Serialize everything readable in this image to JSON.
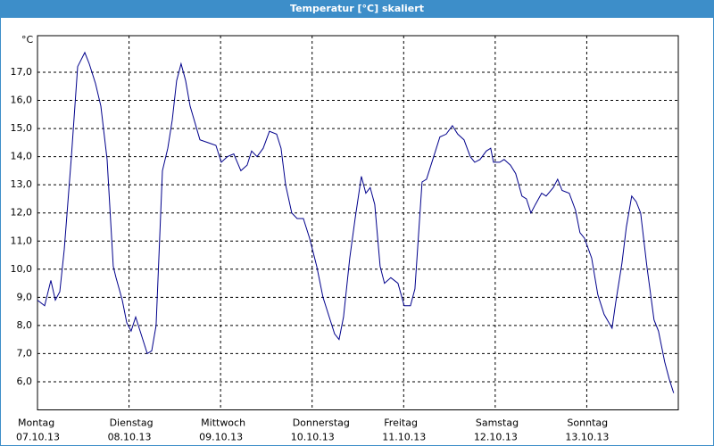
{
  "chart_data": {
    "type": "line",
    "title": "Temperatur [°C] skaliert",
    "ylabel": "°C",
    "xlim": [
      0,
      7
    ],
    "ylim": [
      5,
      18.3
    ],
    "xticks": [
      {
        "value": 0,
        "label": "Montag",
        "date": "07.10.13"
      },
      {
        "value": 1,
        "label": "Dienstag",
        "date": "08.10.13"
      },
      {
        "value": 2,
        "label": "Mittwoch",
        "date": "09.10.13"
      },
      {
        "value": 3,
        "label": "Donnerstag",
        "date": "10.10.13"
      },
      {
        "value": 4,
        "label": "Freitag",
        "date": "11.10.13"
      },
      {
        "value": 5,
        "label": "Samstag",
        "date": "12.10.13"
      },
      {
        "value": 6,
        "label": "Sonntag",
        "date": "13.10.13"
      }
    ],
    "yticks": [
      {
        "value": 6,
        "label": "6,0"
      },
      {
        "value": 7,
        "label": "7,0"
      },
      {
        "value": 8,
        "label": "8,0"
      },
      {
        "value": 9,
        "label": "9,0"
      },
      {
        "value": 10,
        "label": "10,0"
      },
      {
        "value": 11,
        "label": "11,0"
      },
      {
        "value": 12,
        "label": "12,0"
      },
      {
        "value": 13,
        "label": "13,0"
      },
      {
        "value": 14,
        "label": "14,0"
      },
      {
        "value": 15,
        "label": "15,0"
      },
      {
        "value": 16,
        "label": "16,0"
      },
      {
        "value": 17,
        "label": "17,0"
      }
    ],
    "grid": true,
    "series": [
      {
        "color": "#00008b",
        "x": [
          0,
          0.078,
          0.146,
          0.195,
          0.244,
          0.292,
          0.37,
          0.439,
          0.517,
          0.565,
          0.634,
          0.692,
          0.76,
          0.828,
          0.858,
          0.926,
          0.975,
          1.023,
          1.072,
          1.15,
          1.199,
          1.248,
          1.296,
          1.365,
          1.423,
          1.472,
          1.52,
          1.569,
          1.618,
          1.667,
          1.774,
          1.862,
          1.949,
          2.008,
          2.076,
          2.144,
          2.222,
          2.29,
          2.339,
          2.398,
          2.466,
          2.534,
          2.612,
          2.661,
          2.71,
          2.778,
          2.836,
          2.904,
          2.973,
          3.051,
          3.119,
          3.187,
          3.246,
          3.294,
          3.343,
          3.411,
          3.47,
          3.538,
          3.587,
          3.635,
          3.684,
          3.743,
          3.791,
          3.86,
          3.938,
          4.006,
          4.074,
          4.123,
          4.201,
          4.25,
          4.318,
          4.396,
          4.464,
          4.532,
          4.591,
          4.659,
          4.727,
          4.776,
          4.834,
          4.903,
          4.951,
          4.981,
          5.049,
          5.097,
          5.166,
          5.224,
          5.292,
          5.341,
          5.39,
          5.439,
          5.507,
          5.556,
          5.634,
          5.682,
          5.731,
          5.809,
          5.877,
          5.926,
          5.975,
          6.053,
          6.121,
          6.189,
          6.277,
          6.316,
          6.384,
          6.433,
          6.491,
          6.54,
          6.589,
          6.657,
          6.735,
          6.784,
          6.852,
          6.901,
          6.949
        ],
        "values": [
          8.9,
          8.7,
          9.6,
          8.9,
          9.2,
          10.7,
          14.0,
          17.2,
          17.7,
          17.3,
          16.6,
          15.8,
          13.9,
          10.1,
          9.7,
          8.9,
          8.1,
          7.8,
          8.3,
          7.5,
          7.0,
          7.1,
          8.0,
          13.5,
          14.3,
          15.3,
          16.7,
          17.3,
          16.7,
          15.8,
          14.6,
          14.5,
          14.4,
          13.8,
          14.0,
          14.1,
          13.5,
          13.7,
          14.2,
          14.0,
          14.3,
          14.9,
          14.8,
          14.3,
          13.0,
          12.0,
          11.8,
          11.8,
          11.1,
          10.1,
          9.0,
          8.3,
          7.7,
          7.5,
          8.3,
          10.4,
          11.8,
          13.3,
          12.7,
          12.9,
          12.3,
          10.1,
          9.5,
          9.7,
          9.5,
          8.7,
          8.7,
          9.3,
          13.1,
          13.2,
          13.9,
          14.7,
          14.8,
          15.1,
          14.8,
          14.6,
          14.0,
          13.8,
          13.9,
          14.2,
          14.3,
          13.8,
          13.8,
          13.9,
          13.7,
          13.4,
          12.6,
          12.5,
          12.0,
          12.3,
          12.7,
          12.6,
          12.9,
          13.2,
          12.8,
          12.7,
          12.1,
          11.3,
          11.1,
          10.4,
          9.1,
          8.4,
          7.9,
          8.8,
          10.2,
          11.5,
          12.6,
          12.4,
          12.0,
          10.1,
          8.2,
          7.8,
          6.7,
          6.1,
          5.6
        ]
      }
    ]
  }
}
